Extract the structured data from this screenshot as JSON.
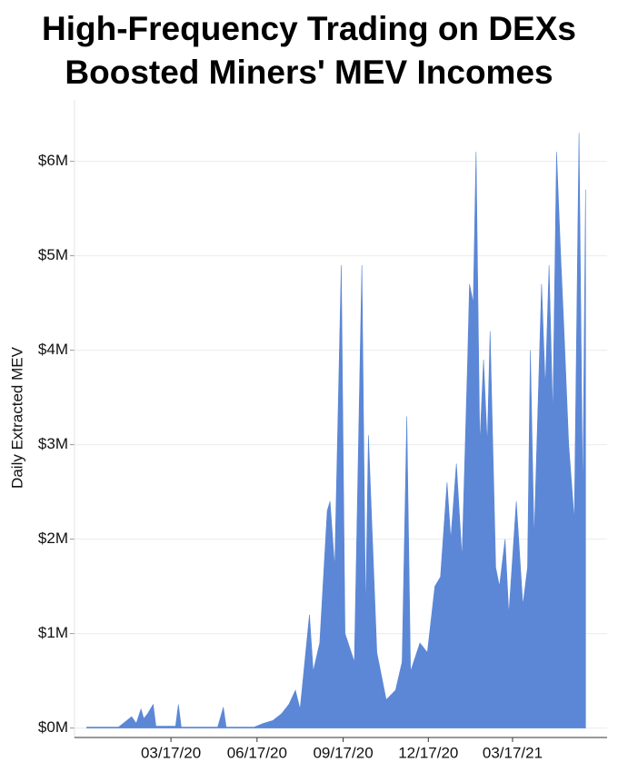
{
  "chart_data": {
    "type": "area",
    "title": "High-Frequency Trading on DEXs Boosted Miners' MEV Incomes",
    "y_label": "Daily Extracted MEV",
    "color": "#5b87d6",
    "grid": true,
    "xlim": [
      "12/05/19",
      "06/26/21"
    ],
    "xticks": [
      "03/17/20",
      "06/17/20",
      "09/17/20",
      "12/17/20",
      "03/17/21"
    ],
    "ylim": [
      -0.1,
      6.65
    ],
    "yticks": [
      {
        "value": 0,
        "label": "$0M"
      },
      {
        "value": 1,
        "label": "$1M"
      },
      {
        "value": 2,
        "label": "$2M"
      },
      {
        "value": 3,
        "label": "$3M"
      },
      {
        "value": 4,
        "label": "$4M"
      },
      {
        "value": 5,
        "label": "$5M"
      },
      {
        "value": 6,
        "label": "$6M"
      }
    ],
    "x": [
      "12/18/19",
      "01/21/20",
      "01/30/20",
      "02/04/20",
      "02/09/20",
      "02/14/20",
      "02/17/20",
      "02/21/20",
      "02/27/20",
      "03/01/20",
      "03/22/20",
      "03/25/20",
      "03/28/20",
      "05/06/20",
      "05/12/20",
      "05/15/20",
      "06/14/20",
      "06/24/20",
      "07/04/20",
      "07/13/20",
      "07/21/20",
      "07/28/20",
      "08/02/20",
      "08/12/20",
      "08/16/20",
      "08/23/20",
      "08/31/20",
      "09/03/20",
      "09/08/20",
      "09/15/20",
      "09/19/20",
      "09/29/20",
      "10/07/20",
      "10/11/20",
      "10/14/20",
      "10/23/20",
      "11/02/20",
      "11/12/20",
      "11/19/20",
      "11/24/20",
      "11/28/20",
      "12/08/20",
      "12/16/20",
      "12/24/20",
      "12/30/20",
      "01/06/21",
      "01/10/21",
      "01/16/21",
      "01/22/21",
      "01/28/21",
      "01/30/21",
      "02/03/21",
      "02/06/21",
      "02/10/21",
      "02/14/21",
      "02/18/21",
      "02/21/21",
      "02/27/21",
      "03/03/21",
      "03/09/21",
      "03/13/21",
      "03/21/21",
      "03/28/21",
      "04/02/21",
      "04/05/21",
      "04/09/21",
      "04/17/21",
      "04/21/21",
      "04/25/21",
      "04/29/21",
      "05/03/21",
      "05/07/21",
      "05/11/21",
      "05/16/21",
      "05/22/21",
      "05/27/21",
      "05/31/21",
      "06/03/21"
    ],
    "values": [
      0.01,
      0.01,
      0.08,
      0.12,
      0.05,
      0.2,
      0.1,
      0.15,
      0.25,
      0.02,
      0.02,
      0.25,
      0.01,
      0.01,
      0.22,
      0.01,
      0.01,
      0.05,
      0.08,
      0.15,
      0.25,
      0.4,
      0.2,
      1.2,
      0.6,
      0.9,
      2.3,
      2.4,
      1.7,
      4.9,
      1.0,
      0.7,
      4.9,
      1.2,
      3.1,
      0.8,
      0.3,
      0.4,
      0.7,
      3.3,
      0.6,
      0.9,
      0.8,
      1.5,
      1.6,
      2.6,
      2.0,
      2.8,
      1.8,
      3.9,
      4.7,
      4.5,
      6.1,
      3.0,
      3.9,
      3.0,
      4.2,
      1.7,
      1.5,
      2.0,
      1.2,
      2.4,
      1.3,
      1.7,
      4.0,
      2.0,
      4.7,
      3.6,
      4.9,
      3.3,
      6.1,
      5.1,
      4.2,
      3.0,
      2.2,
      6.3,
      2.4,
      5.7
    ]
  }
}
